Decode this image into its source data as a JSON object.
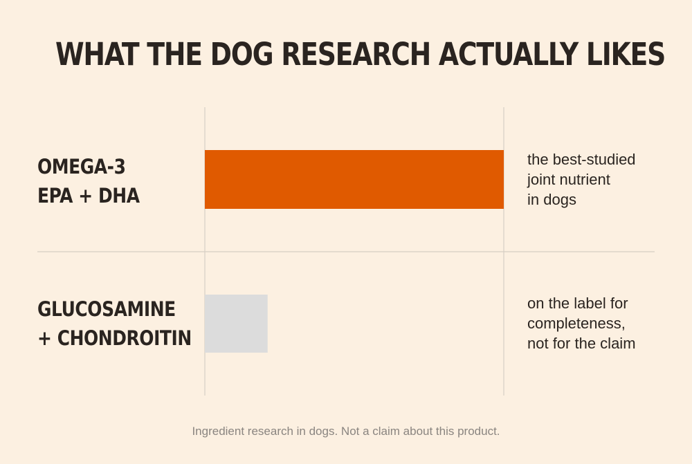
{
  "title": "WHAT THE DOG RESEARCH ACTUALLY LIKES",
  "footer": "Ingredient research in dogs. Not a claim about this product.",
  "colors": {
    "background": "#fcf0e1",
    "omega_bar": "#e05a00",
    "glucosamine_bar": "#dcdcdc",
    "grid": "#d6cec4"
  },
  "chart_data": {
    "type": "bar",
    "orientation": "horizontal",
    "xlim": [
      0,
      1
    ],
    "grid": false,
    "categories": [
      {
        "lines": [
          "OMEGA-3",
          "EPA + DHA"
        ],
        "value": 1.0,
        "color": "#e05a00",
        "note": [
          "the best-studied",
          "joint nutrient",
          "in dogs"
        ]
      },
      {
        "lines": [
          "GLUCOSAMINE",
          "+ CHONDROITIN"
        ],
        "value": 0.21,
        "color": "#dcdcdc",
        "note": [
          "on the label for",
          "completeness,",
          "not for the claim"
        ]
      }
    ]
  }
}
